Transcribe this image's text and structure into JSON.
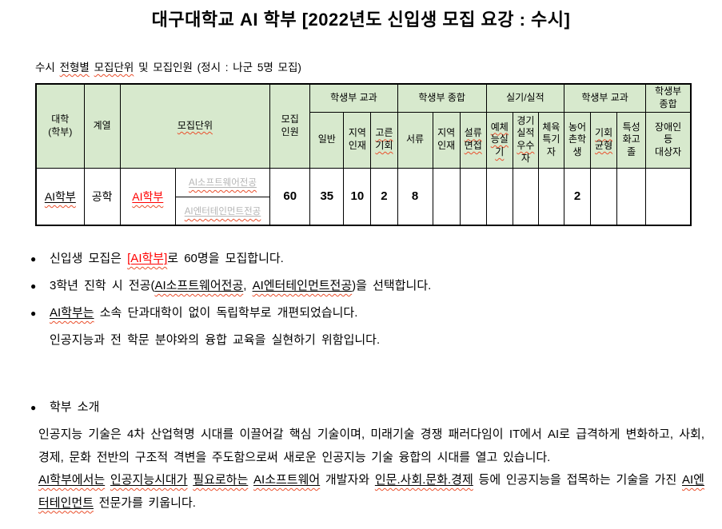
{
  "page": {
    "title": "대구대학교 AI 학부 [2022년도 신입생 모집 요강 : 수시]"
  },
  "subtitle_runs": [
    {
      "t": "수시 "
    },
    {
      "t": "전형별",
      "cls": "sqtext"
    },
    {
      "t": " "
    },
    {
      "t": "모집단위",
      "cls": "sqtext"
    },
    {
      "t": " 및 모집인원 (정시 : 나군 5명 모집)"
    }
  ],
  "table": {
    "header": {
      "college": "대학\n(학부)",
      "category": "계열",
      "unit": "모집단위",
      "quota": "모집\n인원",
      "group1": "학생부 교과",
      "group2": "학생부 종합",
      "group3": "실기/실적",
      "group4": "학생부 교과",
      "group5": "학생부\n종합",
      "sub": {
        "general": "일반",
        "regional1": "지역\n인재",
        "equal_opportunity": "고른\n기회",
        "documents": "서류",
        "regional2": "지역\n인재",
        "doc_interview": "설류\n면접",
        "arts_practical": "예체\n능실\n기",
        "sports_record_runs": [
          {
            "t": "경기\n실적\n"
          },
          {
            "t": "우수",
            "cls": "sqtext"
          },
          {
            "t": "\n자"
          }
        ],
        "sports_talent": "체육\n특기\n자",
        "rural": "농어\n촌학\n생",
        "opportunity_balance": "기회\n균형",
        "vocational": "특성\n화고\n졸",
        "disabled": "장애인\n등\n대상자"
      }
    },
    "row": {
      "college": "AI학부",
      "category": "공학",
      "unit": "AI학부",
      "major1": "AI소프트웨어전공",
      "major2": "AI엔터테인먼트전공",
      "quota": "60",
      "values": {
        "general": "35",
        "regional1": "10",
        "equal_opportunity": "2",
        "documents": "8",
        "regional2": "",
        "doc_interview": "",
        "arts_practical": "",
        "sports_record": "",
        "sports_talent": "",
        "rural": "2",
        "opportunity_balance": "",
        "vocational": "",
        "disabled": ""
      }
    }
  },
  "bullets": {
    "b1_runs": [
      {
        "t": "신입생 모집은 "
      },
      {
        "t": "[AI학부]",
        "cls": "red u sq"
      },
      {
        "t": "로 60명을 모집합니다."
      }
    ],
    "b2_runs": [
      {
        "t": "3학년 진학 시 전공("
      },
      {
        "t": "AI소프트웨어전공",
        "cls": "u sq"
      },
      {
        "t": ", "
      },
      {
        "t": "AI엔터테인먼트전공",
        "cls": "u sq"
      },
      {
        "t": ")을 선택합니다."
      }
    ],
    "b3_runs": [
      {
        "t": "AI학부는",
        "cls": "u sq"
      },
      {
        "t": " 소속 단과대학이 없이 독립학부로 개편되었습니다."
      }
    ],
    "b3_cont": "인공지능과 전 학문 분야와의 융합 교육을 실현하기 위함입니다."
  },
  "intro": {
    "heading": "학부 소개",
    "para1": "인공지능 기술은 4차 산업혁명 시대를 이끌어갈 핵심 기술이며, 미래기술 경쟁 패러다임이 IT에서 AI로 급격하게 변화하고, 사회, 경제, 문화 전반의 구조적 격변을 주도함으로써 새로운 인공지능 기술 융합의 시대를 열고 있습니다.",
    "para2_runs": [
      {
        "t": "AI학부에서는",
        "cls": "u sq"
      },
      {
        "t": " "
      },
      {
        "t": "인공지능시대가",
        "cls": "u sq"
      },
      {
        "t": " "
      },
      {
        "t": "필요로하는",
        "cls": "u sq"
      },
      {
        "t": " "
      },
      {
        "t": "AI소프트웨어",
        "cls": "u sq"
      },
      {
        "t": " 개발자와 "
      },
      {
        "t": "인문.사회.문화.경제",
        "cls": "u sq"
      },
      {
        "t": " 등에 인공지능을 접목하는 기술을 가진 "
      },
      {
        "t": "AI엔터테인먼트",
        "cls": "u sq"
      },
      {
        "t": " 전문가를 키웁니다."
      }
    ]
  },
  "colors": {
    "header_green": "#d7e9cd",
    "accent_red": "#ff0000",
    "squiggle_red": "#ea4f2c",
    "muted_gray": "#b5b5b5"
  }
}
